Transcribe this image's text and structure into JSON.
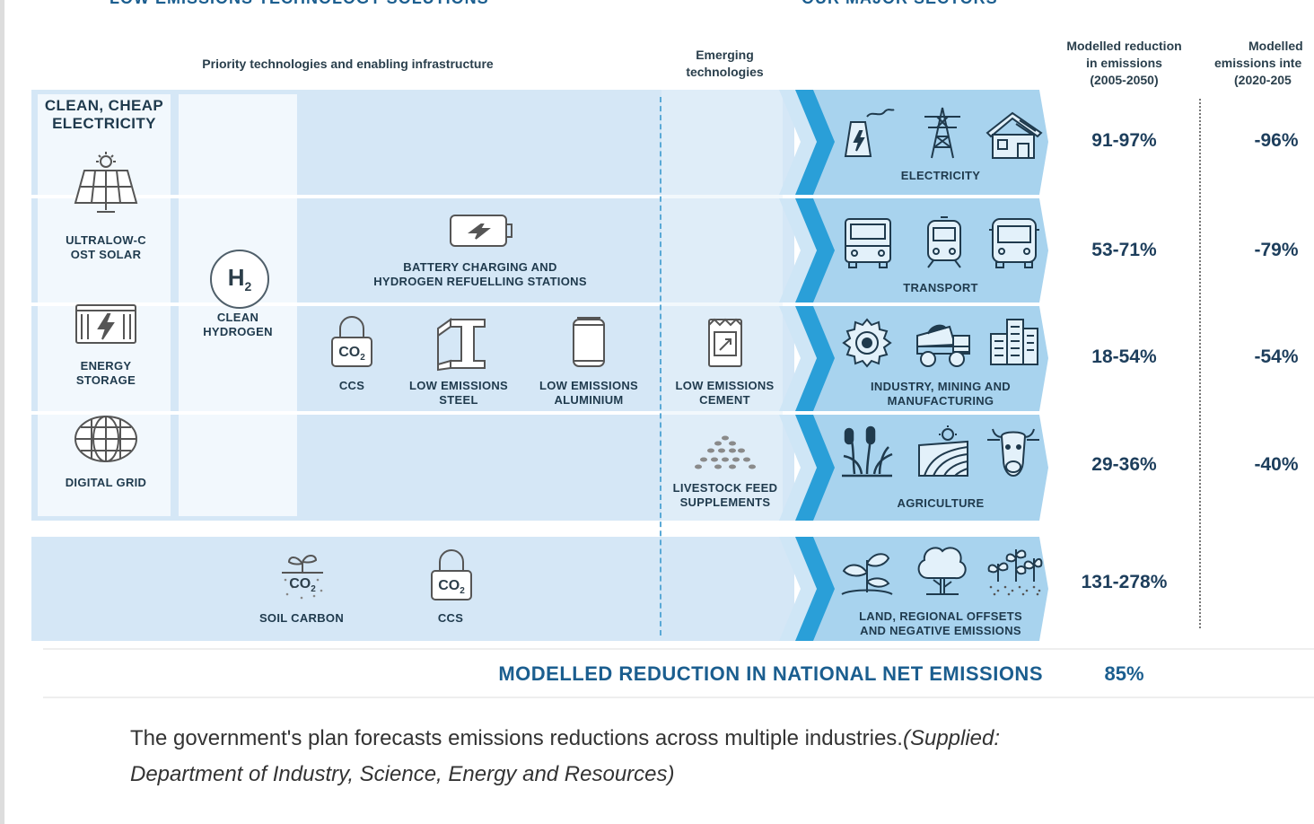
{
  "header": {
    "left_title": "LOW EMISSIONS TECHNOLOGY SOLUTIONS",
    "right_title": "OUR MAJOR SECTORS"
  },
  "column_headers": {
    "priority": "Priority technologies and enabling infrastructure",
    "emerging_line1": "Emerging",
    "emerging_line2": "technologies",
    "reduction_line1": "Modelled reduction",
    "reduction_line2": "in emissions",
    "reduction_line3": "(2005-2050)",
    "intensity_line1": "Modelled",
    "intensity_line2": "emissions inte",
    "intensity_line3": "(2020-205"
  },
  "left_column": {
    "clean_cheap_line1": "CLEAN, CHEAP",
    "clean_cheap_line2": "ELECTRICITY",
    "solar_line1": "ULTRALOW-C",
    "solar_line2": "OST SOLAR",
    "storage_line1": "ENERGY",
    "storage_line2": "STORAGE",
    "grid": "DIGITAL GRID"
  },
  "technologies": {
    "hydrogen_symbol": "H",
    "hydrogen_sub": "2",
    "hydrogen_line1": "CLEAN",
    "hydrogen_line2": "HYDROGEN",
    "battery_line1": "BATTERY CHARGING AND",
    "battery_line2": "HYDROGEN REFUELLING STATIONS",
    "ccs": "CCS",
    "co2_text": "CO",
    "co2_sub": "2",
    "steel_line1": "LOW EMISSIONS",
    "steel_line2": "STEEL",
    "aluminium_line1": "LOW EMISSIONS",
    "aluminium_line2": "ALUMINIUM",
    "cement_line1": "LOW EMISSIONS",
    "cement_line2": "CEMENT",
    "feed_line1": "LIVESTOCK FEED",
    "feed_line2": "SUPPLEMENTS",
    "soil_carbon": "SOIL CARBON",
    "ccs2": "CCS"
  },
  "sectors": [
    {
      "line1": "ELECTRICITY",
      "line2": "",
      "reduction": "91-97%",
      "intensity": "-96%"
    },
    {
      "line1": "TRANSPORT",
      "line2": "",
      "reduction": "53-71%",
      "intensity": "-79%"
    },
    {
      "line1": "INDUSTRY, MINING AND",
      "line2": "MANUFACTURING",
      "reduction": "18-54%",
      "intensity": "-54%"
    },
    {
      "line1": "",
      "line2": "AGRICULTURE",
      "reduction": "29-36%",
      "intensity": "-40%"
    },
    {
      "line1": "LAND, REGIONAL OFFSETS",
      "line2": "AND NEGATIVE EMISSIONS",
      "reduction": "131-278%",
      "intensity": ""
    }
  ],
  "summary": {
    "label": "MODELLED REDUCTION IN NATIONAL NET EMISSIONS",
    "value": "85%"
  },
  "caption": {
    "text": "The government's plan forecasts emissions reductions across multiple industries.",
    "source_line1": "(Supplied:",
    "source_line2": "Department of Industry, Science, Energy and Resources)"
  },
  "colors": {
    "panel": "#d5e7f6",
    "chevron": "#2a9fd8",
    "sector_panel": "#a8d3ee",
    "text_dark": "#1f3a4d",
    "summary_blue": "#1b5e8f"
  }
}
